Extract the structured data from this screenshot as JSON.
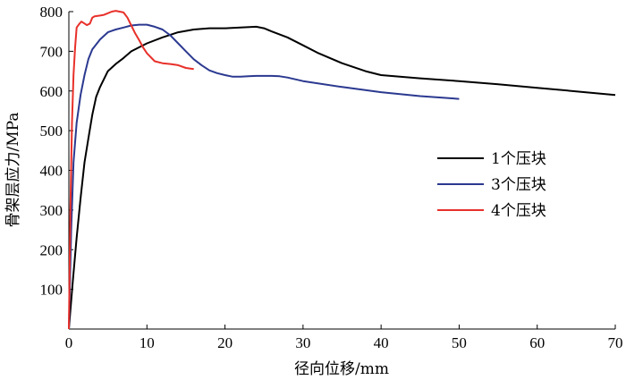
{
  "chart_data": {
    "type": "line",
    "xlabel": "径向位移/mm",
    "ylabel": "骨架层应力/MPa",
    "xlim": [
      0,
      70
    ],
    "ylim": [
      0,
      800
    ],
    "xticks": [
      0,
      10,
      20,
      30,
      40,
      50,
      60,
      70
    ],
    "yticks": [
      100,
      200,
      300,
      400,
      500,
      600,
      700,
      800
    ],
    "grid": false,
    "legend_position": "right-middle",
    "series": [
      {
        "name": "1个压块",
        "color": "#000000",
        "x": [
          0,
          0.5,
          1,
          1.5,
          2,
          2.5,
          3,
          3.5,
          4,
          5,
          6,
          7,
          8,
          9,
          10,
          12,
          14,
          16,
          18,
          20,
          22,
          24,
          25,
          26,
          28,
          30,
          32,
          35,
          38,
          40,
          45,
          50,
          55,
          60,
          65,
          70
        ],
        "y": [
          0,
          120,
          230,
          330,
          420,
          480,
          540,
          585,
          610,
          650,
          668,
          683,
          700,
          710,
          720,
          735,
          748,
          755,
          758,
          758,
          760,
          762,
          758,
          750,
          735,
          715,
          695,
          670,
          650,
          640,
          632,
          625,
          617,
          608,
          599,
          590
        ]
      },
      {
        "name": "3个压块",
        "color": "#2b3990",
        "x": [
          0,
          0.3,
          0.6,
          1,
          1.5,
          2,
          2.5,
          3,
          4,
          5,
          6,
          7,
          8,
          9,
          10,
          11,
          12,
          13,
          14,
          15,
          16,
          17,
          18,
          19,
          20,
          21,
          22,
          23,
          24,
          25,
          26,
          27,
          28,
          30,
          35,
          40,
          45,
          50
        ],
        "y": [
          0,
          250,
          420,
          520,
          590,
          640,
          680,
          705,
          730,
          748,
          755,
          760,
          765,
          767,
          767,
          762,
          755,
          740,
          720,
          700,
          680,
          665,
          652,
          645,
          640,
          636,
          636,
          637,
          638,
          638,
          638,
          637,
          634,
          625,
          610,
          597,
          587,
          580
        ]
      },
      {
        "name": "4个压块",
        "color": "#e8302a",
        "x": [
          0,
          0.2,
          0.4,
          0.6,
          0.8,
          1,
          1.3,
          1.6,
          2,
          2.3,
          2.7,
          3,
          3.3,
          3.6,
          4,
          4.5,
          5,
          5.5,
          6,
          6.5,
          7,
          7.5,
          8,
          8.5,
          9,
          9.5,
          10,
          11,
          12,
          13,
          14,
          15,
          16
        ],
        "y": [
          0,
          300,
          520,
          640,
          710,
          760,
          768,
          775,
          770,
          766,
          770,
          785,
          788,
          789,
          790,
          792,
          796,
          800,
          802,
          800,
          798,
          785,
          765,
          745,
          728,
          710,
          695,
          675,
          670,
          668,
          665,
          658,
          655
        ]
      }
    ]
  }
}
